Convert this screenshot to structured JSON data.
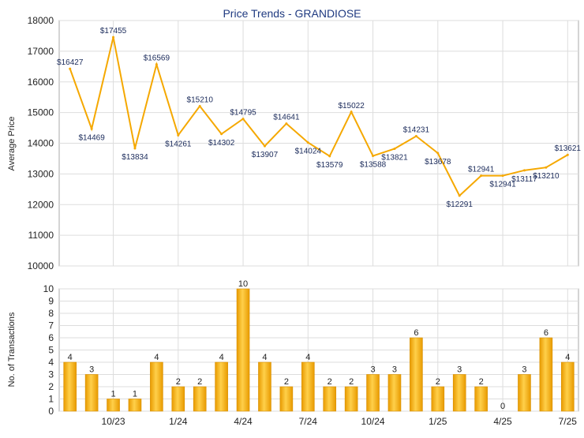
{
  "chart_data": [
    {
      "type": "line",
      "title": "Price Trends - GRANDIOSE",
      "ylabel": "Average Price",
      "ylim": [
        10000,
        18000
      ],
      "yticks": [
        10000,
        11000,
        12000,
        13000,
        14000,
        15000,
        16000,
        17000,
        18000
      ],
      "grid": true,
      "line_color": "#f5a800",
      "series": [
        {
          "values": [
            16427,
            14469,
            17455,
            13834,
            16569,
            14261,
            15210,
            14302,
            14795,
            13907,
            14641,
            14024,
            13579,
            15022,
            13588,
            13821,
            14231,
            13678,
            12291,
            12941,
            12941,
            13117,
            13210,
            13621
          ],
          "labels": [
            "$16427",
            "$14469",
            "$17455",
            "$13834",
            "$16569",
            "$14261",
            "$15210",
            "$14302",
            "$14795",
            "$13907",
            "$14641",
            "$14024",
            "$13579",
            "$15022",
            "$13588",
            "$13821",
            "$14231",
            "$13678",
            "$12291",
            "$12941",
            "$12941",
            "$13117",
            "$13210",
            "$13621"
          ]
        }
      ]
    },
    {
      "type": "bar",
      "ylabel": "No. of Transactions",
      "ylim": [
        0,
        10
      ],
      "yticks": [
        0,
        1,
        2,
        3,
        4,
        5,
        6,
        7,
        8,
        9,
        10
      ],
      "grid": true,
      "bar_color": "#f5a800",
      "values": [
        4,
        3,
        1,
        1,
        4,
        2,
        2,
        4,
        10,
        4,
        2,
        4,
        2,
        2,
        3,
        3,
        6,
        2,
        3,
        2,
        0,
        3,
        6,
        4
      ],
      "xtick_labels": [
        "10/23",
        "1/24",
        "4/24",
        "7/24",
        "10/24",
        "1/25",
        "4/25",
        "7/25"
      ]
    }
  ]
}
